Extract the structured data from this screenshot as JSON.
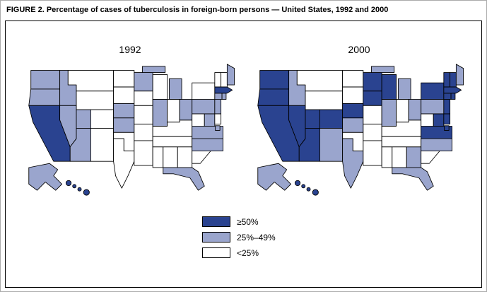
{
  "figure": {
    "title": "FIGURE 2. Percentage of cases of tuberculosis in foreign-born persons — United States, 1992 and 2000"
  },
  "colors": {
    "high": "#2a4390",
    "medium": "#9aa5cd",
    "low": "#ffffff"
  },
  "legend": [
    {
      "label": "≥50%",
      "category": "high"
    },
    {
      "label": "25%–49%",
      "category": "medium"
    },
    {
      "label": "<25%",
      "category": "low"
    }
  ],
  "maps": [
    {
      "year": "1992",
      "high": [
        "CA",
        "MA",
        "HI"
      ],
      "medium": [
        "WA",
        "OR",
        "ID",
        "NV",
        "UT",
        "AZ",
        "AK",
        "MN",
        "NE",
        "KS",
        "IL",
        "MI",
        "OH",
        "PA",
        "NJ",
        "CT",
        "RI",
        "ME",
        "MD",
        "DC",
        "VA",
        "NC",
        "FL"
      ]
    },
    {
      "year": "2000",
      "high": [
        "WA",
        "OR",
        "CA",
        "NV",
        "AZ",
        "UT",
        "CO",
        "NE",
        "MN",
        "IA",
        "WI",
        "NY",
        "VT",
        "NH",
        "MA",
        "RI",
        "CT",
        "NJ",
        "DE",
        "MD",
        "DC",
        "VA",
        "HI"
      ],
      "medium": [
        "ID",
        "NM",
        "TX",
        "KS",
        "IL",
        "MI",
        "OH",
        "PA",
        "ME",
        "NC",
        "GA",
        "FL",
        "AK"
      ]
    }
  ]
}
